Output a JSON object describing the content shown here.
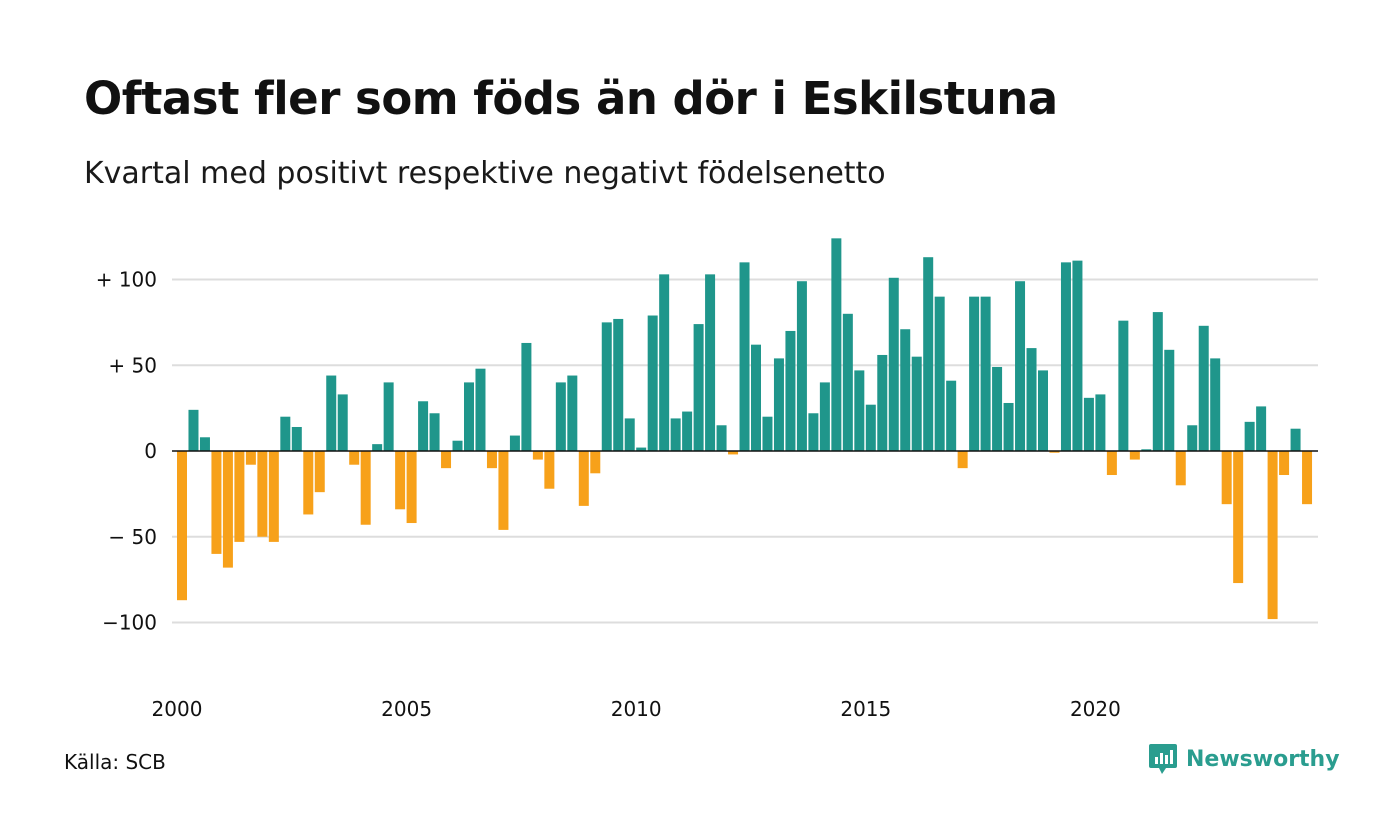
{
  "title": "Oftast fler som föds än dör i Eskilstuna",
  "subtitle": "Kvartal med positivt respektive negativt födelsenetto",
  "source": "Källa: SCB",
  "brand": {
    "name": "Newsworthy",
    "icon": "newsworthy-logo-icon",
    "color": "#2a9d8f"
  },
  "chart_data": {
    "type": "bar",
    "title": "Oftast fler som föds än dör i Eskilstuna",
    "subtitle": "Kvartal med positivt respektive negativt födelsenetto",
    "xlabel": "",
    "ylabel": "",
    "x_start": "2000 Q1",
    "frequency": "quarterly",
    "x_tick_labels": [
      "2000",
      "2005",
      "2010",
      "2015",
      "2020"
    ],
    "y_ticks": [
      100,
      50,
      0,
      -50,
      -100
    ],
    "y_tick_labels": [
      "+ 100",
      "+  50",
      "0",
      "− 50",
      "−100"
    ],
    "ylim": [
      -130,
      132
    ],
    "grid": true,
    "colors": {
      "positive": "#1f968b",
      "negative": "#f7a11a"
    },
    "values": [
      -87,
      24,
      8,
      -60,
      -68,
      -53,
      -8,
      -50,
      -53,
      20,
      14,
      -37,
      -24,
      44,
      33,
      -8,
      -43,
      4,
      40,
      -34,
      -42,
      29,
      22,
      -10,
      6,
      40,
      48,
      -10,
      -46,
      9,
      63,
      -5,
      -22,
      40,
      44,
      -32,
      -13,
      75,
      77,
      19,
      2,
      79,
      103,
      19,
      23,
      74,
      103,
      15,
      -2,
      110,
      62,
      20,
      54,
      70,
      99,
      22,
      40,
      124,
      80,
      47,
      27,
      56,
      101,
      71,
      55,
      113,
      90,
      41,
      -10,
      90,
      90,
      49,
      28,
      99,
      60,
      47,
      -1,
      110,
      111,
      31,
      33,
      -14,
      76,
      -5,
      1,
      81,
      59,
      -20,
      15,
      73,
      54,
      -31,
      -77,
      17,
      26,
      -98,
      -14,
      13,
      -31
    ]
  }
}
